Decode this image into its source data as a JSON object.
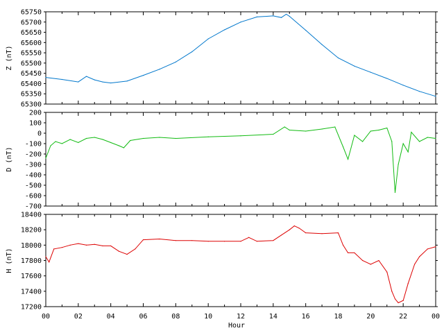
{
  "chart_data": [
    {
      "type": "line",
      "ylabel": "Z (nT)",
      "ylim": [
        65300,
        65750
      ],
      "yticks": [
        65300,
        65350,
        65400,
        65450,
        65500,
        65550,
        65600,
        65650,
        65700,
        65750
      ],
      "xlim": [
        0,
        24
      ],
      "color": "#0077cc",
      "x": [
        0,
        1,
        2,
        2.5,
        3,
        3.5,
        4,
        5,
        6,
        7,
        8,
        9,
        10,
        11,
        12,
        13,
        14,
        14.5,
        14.8,
        15,
        16,
        17,
        18,
        19,
        20,
        21,
        22,
        23,
        24
      ],
      "values": [
        65430,
        65420,
        65408,
        65435,
        65418,
        65408,
        65403,
        65412,
        65440,
        65470,
        65505,
        65555,
        65618,
        65662,
        65700,
        65725,
        65730,
        65722,
        65738,
        65728,
        65660,
        65590,
        65525,
        65485,
        65455,
        65425,
        65392,
        65362,
        65338
      ]
    },
    {
      "type": "line",
      "ylabel": "D (nT)",
      "ylim": [
        -700,
        200
      ],
      "yticks": [
        -700,
        -600,
        -500,
        -400,
        -300,
        -200,
        -100,
        0,
        100,
        200
      ],
      "xlim": [
        0,
        24
      ],
      "color": "#11bb11",
      "x": [
        0,
        0.3,
        0.6,
        1,
        1.5,
        2,
        2.5,
        3,
        3.5,
        4,
        4.5,
        4.8,
        5.2,
        6,
        7,
        8,
        10,
        12,
        14,
        14.7,
        15,
        16,
        17,
        17.8,
        18.3,
        18.6,
        19,
        19.5,
        20,
        20.5,
        21,
        21.3,
        21.5,
        21.7,
        22,
        22.3,
        22.5,
        23,
        23.5,
        24
      ],
      "values": [
        -240,
        -120,
        -80,
        -100,
        -60,
        -90,
        -50,
        -40,
        -60,
        -90,
        -120,
        -140,
        -70,
        -50,
        -40,
        -50,
        -35,
        -25,
        -10,
        60,
        30,
        20,
        40,
        60,
        -130,
        -250,
        -20,
        -80,
        20,
        30,
        50,
        -80,
        -570,
        -300,
        -100,
        -180,
        10,
        -80,
        -40,
        -50
      ]
    },
    {
      "type": "line",
      "ylabel": "H (nT)",
      "ylim": [
        17200,
        18400
      ],
      "yticks": [
        17200,
        17400,
        17600,
        17800,
        18000,
        18200,
        18400
      ],
      "xlim": [
        0,
        24
      ],
      "xticks": [
        "00",
        "02",
        "04",
        "06",
        "08",
        "10",
        "12",
        "14",
        "16",
        "18",
        "20",
        "22",
        "00"
      ],
      "xlabel": "Hour",
      "color": "#dd0000",
      "x": [
        0,
        0.2,
        0.5,
        1,
        1.5,
        2,
        2.5,
        3,
        3.5,
        4,
        4.5,
        5,
        5.5,
        6,
        7,
        8,
        9,
        10,
        11,
        12,
        12.5,
        13,
        14,
        14.5,
        15,
        15.3,
        15.6,
        16,
        17,
        18,
        18.3,
        18.6,
        19,
        19.5,
        20,
        20.5,
        21,
        21.3,
        21.5,
        21.7,
        22,
        22.3,
        22.7,
        23,
        23.5,
        24
      ],
      "values": [
        17850,
        17780,
        17950,
        17970,
        18000,
        18020,
        18000,
        18010,
        17990,
        17990,
        17920,
        17880,
        17950,
        18070,
        18080,
        18060,
        18060,
        18050,
        18050,
        18050,
        18100,
        18050,
        18060,
        18130,
        18200,
        18250,
        18220,
        18160,
        18150,
        18160,
        18000,
        17900,
        17900,
        17800,
        17750,
        17800,
        17650,
        17400,
        17300,
        17250,
        17280,
        17500,
        17750,
        17850,
        17950,
        17980
      ]
    }
  ]
}
